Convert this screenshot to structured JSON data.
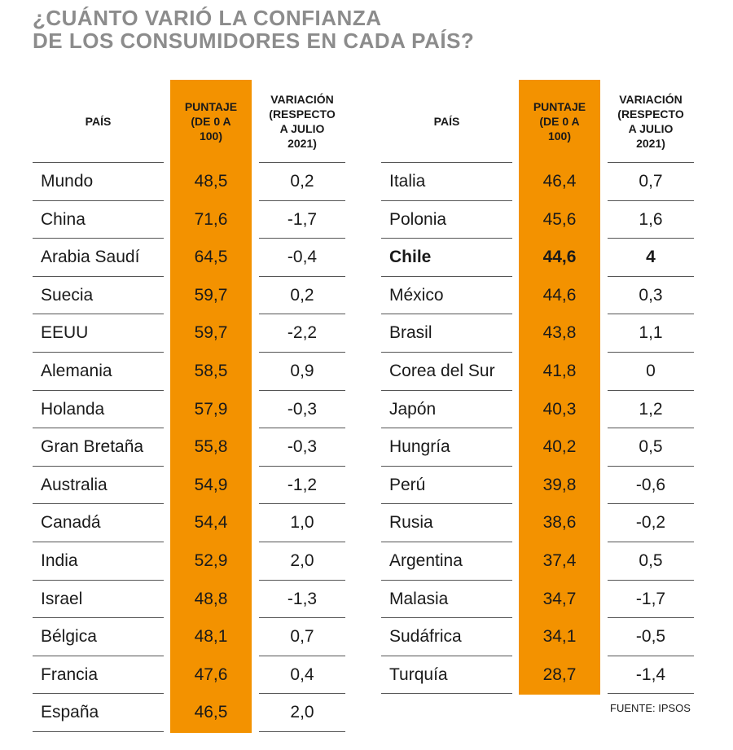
{
  "title": {
    "line1": "¿CUÁNTO VARIÓ LA CONFIANZA",
    "line2": "DE LOS CONSUMIDORES EN CADA PAÍS?"
  },
  "headers": {
    "country": "PAÍS",
    "score": [
      "PUNTAJE",
      "(DE 0 A",
      "100)"
    ],
    "variation": [
      "VARIACIÓN",
      "(RESPECTO",
      "A JULIO",
      "2021)"
    ]
  },
  "left_rows": [
    {
      "country": "Mundo",
      "score": "48,5",
      "variation": "0,2"
    },
    {
      "country": "China",
      "score": "71,6",
      "variation": "-1,7"
    },
    {
      "country": "Arabia Saudí",
      "score": "64,5",
      "variation": "-0,4"
    },
    {
      "country": "Suecia",
      "score": "59,7",
      "variation": "0,2"
    },
    {
      "country": "EEUU",
      "score": "59,7",
      "variation": "-2,2"
    },
    {
      "country": "Alemania",
      "score": "58,5",
      "variation": "0,9"
    },
    {
      "country": "Holanda",
      "score": "57,9",
      "variation": "-0,3"
    },
    {
      "country": "Gran Bretaña",
      "score": "55,8",
      "variation": "-0,3"
    },
    {
      "country": "Australia",
      "score": "54,9",
      "variation": "-1,2"
    },
    {
      "country": "Canadá",
      "score": "54,4",
      "variation": "1,0"
    },
    {
      "country": "India",
      "score": "52,9",
      "variation": "2,0"
    },
    {
      "country": "Israel",
      "score": "48,8",
      "variation": "-1,3"
    },
    {
      "country": "Bélgica",
      "score": "48,1",
      "variation": "0,7"
    },
    {
      "country": "Francia",
      "score": "47,6",
      "variation": "0,4"
    },
    {
      "country": "España",
      "score": "46,5",
      "variation": "2,0"
    }
  ],
  "right_rows": [
    {
      "country": "Italia",
      "score": "46,4",
      "variation": "0,7"
    },
    {
      "country": "Polonia",
      "score": "45,6",
      "variation": "1,6"
    },
    {
      "country": "Chile",
      "score": "44,6",
      "variation": "4",
      "highlight": true
    },
    {
      "country": "México",
      "score": "44,6",
      "variation": "0,3"
    },
    {
      "country": "Brasil",
      "score": "43,8",
      "variation": "1,1"
    },
    {
      "country": "Corea del Sur",
      "score": "41,8",
      "variation": "0"
    },
    {
      "country": "Japón",
      "score": "40,3",
      "variation": "1,2"
    },
    {
      "country": "Hungría",
      "score": "40,2",
      "variation": "0,5"
    },
    {
      "country": "Perú",
      "score": "39,8",
      "variation": "-0,6"
    },
    {
      "country": "Rusia",
      "score": "38,6",
      "variation": "-0,2"
    },
    {
      "country": "Argentina",
      "score": "37,4",
      "variation": "0,5"
    },
    {
      "country": "Malasia",
      "score": "34,7",
      "variation": "-1,7"
    },
    {
      "country": "Sudáfrica",
      "score": "34,1",
      "variation": "-0,5"
    },
    {
      "country": "Turquía",
      "score": "28,7",
      "variation": "-1,4"
    }
  ],
  "source": "FUENTE: IPSOS",
  "colors": {
    "accent": "#F39200",
    "title": "#8c8c8c",
    "rule": "#555555"
  }
}
